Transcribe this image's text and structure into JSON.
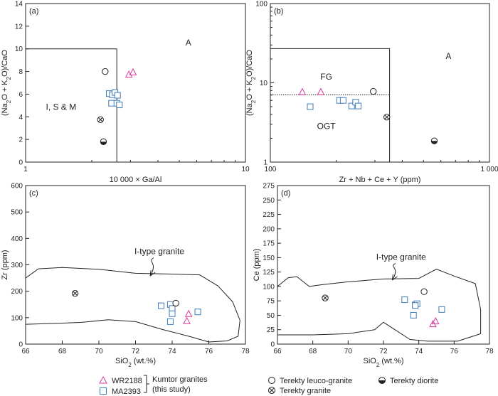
{
  "chart_data": [
    {
      "type": "scatter",
      "panel_label": "(a)",
      "xlabel": "10 000 × Ga/Al",
      "ylabel": "(Na₂O + K₂O)/CaO",
      "x_scale": "log",
      "xlim": [
        1,
        10
      ],
      "ylim": [
        0,
        14
      ],
      "x_ticks": [
        {
          "v": 1,
          "t": "1"
        },
        {
          "v": 10,
          "t": "10"
        }
      ],
      "y_ticks": [
        0,
        2,
        4,
        6,
        8,
        10,
        12,
        14
      ],
      "regions": [
        {
          "label": "A",
          "x": 5.5,
          "y": 10.3
        },
        {
          "label": "I, S & M",
          "x": 1.45,
          "y": 4.6
        }
      ],
      "boundaries": [
        [
          [
            1,
            10
          ],
          [
            2.6,
            10
          ],
          [
            2.6,
            0
          ]
        ]
      ],
      "series": [
        {
          "name": "WR2188",
          "marker": "triangle",
          "points": [
            [
              2.95,
              7.75
            ],
            [
              3.08,
              7.95
            ]
          ]
        },
        {
          "name": "MA2393",
          "marker": "square",
          "points": [
            [
              2.4,
              6.05
            ],
            [
              2.48,
              5.95
            ],
            [
              2.55,
              6.15
            ],
            [
              2.62,
              5.9
            ],
            [
              2.46,
              5.2
            ],
            [
              2.6,
              5.2
            ],
            [
              2.67,
              5.05
            ]
          ]
        },
        {
          "name": "Terekty leuco-granite",
          "marker": "circle",
          "points": [
            [
              2.3,
              8.0
            ]
          ]
        },
        {
          "name": "Terekty granite",
          "marker": "circle-x",
          "points": [
            [
              2.19,
              3.75
            ]
          ]
        },
        {
          "name": "Terekty diorite",
          "marker": "half-circle",
          "points": [
            [
              2.26,
              1.8
            ]
          ]
        }
      ]
    },
    {
      "type": "scatter",
      "panel_label": "(b)",
      "xlabel": "Zr + Nb + Ce + Y (ppm)",
      "ylabel": "(Na₂O + K₂O)/CaO",
      "x_scale": "log",
      "y_scale": "log",
      "xlim": [
        100,
        1000
      ],
      "ylim": [
        1,
        100
      ],
      "x_ticks": [
        {
          "v": 100,
          "t": "100"
        },
        {
          "v": 1000,
          "t": "1 000"
        }
      ],
      "y_ticks": [
        {
          "v": 1,
          "t": "1"
        },
        {
          "v": 10,
          "t": "10"
        },
        {
          "v": 100,
          "t": "100"
        }
      ],
      "regions": [
        {
          "label": "A",
          "x": 650,
          "y": 20
        },
        {
          "label": "FG",
          "x": 180,
          "y": 11
        },
        {
          "label": "OGT",
          "x": 180,
          "y": 2.6
        }
      ],
      "boundaries": [
        [
          [
            100,
            27
          ],
          [
            350,
            27
          ],
          [
            350,
            1
          ]
        ]
      ],
      "dotted_line": {
        "y": 7.1,
        "x_range": [
          100,
          350
        ]
      },
      "series": [
        {
          "name": "WR2188",
          "marker": "triangle",
          "points": [
            [
              140,
              7.7
            ],
            [
              170,
              7.7
            ]
          ]
        },
        {
          "name": "MA2393",
          "marker": "square",
          "points": [
            [
              152,
              5.0
            ],
            [
              207,
              6.0
            ],
            [
              215,
              6.0
            ],
            [
              235,
              5.1
            ],
            [
              245,
              5.7
            ],
            [
              252,
              5.1
            ]
          ]
        },
        {
          "name": "Terekty leuco-granite",
          "marker": "circle",
          "points": [
            [
              295,
              7.8
            ]
          ]
        },
        {
          "name": "Terekty granite",
          "marker": "circle-x",
          "points": [
            [
              340,
              3.7
            ]
          ]
        },
        {
          "name": "Terekty diorite",
          "marker": "half-circle",
          "points": [
            [
              560,
              1.85
            ]
          ]
        }
      ]
    },
    {
      "type": "scatter",
      "panel_label": "(c)",
      "xlabel": "SiO₂ (wt.%)",
      "ylabel": "Zr (ppm)",
      "xlim": [
        66,
        78
      ],
      "ylim": [
        0,
        600
      ],
      "x_ticks": [
        66,
        68,
        70,
        72,
        74,
        76,
        78
      ],
      "y_ticks": [
        0,
        100,
        200,
        300,
        400,
        500,
        600
      ],
      "annotation": {
        "text": "I-type granite",
        "text_at": [
          73.3,
          340
        ],
        "arrow_to": [
          72.8,
          258
        ]
      },
      "field_outline": [
        [
          66,
          250
        ],
        [
          66.7,
          285
        ],
        [
          68,
          290
        ],
        [
          70,
          283
        ],
        [
          72,
          268
        ],
        [
          74,
          265
        ],
        [
          75.5,
          262
        ],
        [
          76.5,
          220
        ],
        [
          77.3,
          160
        ],
        [
          77.7,
          90
        ],
        [
          77.6,
          30
        ],
        [
          77,
          12
        ],
        [
          76,
          8
        ],
        [
          75,
          28
        ],
        [
          73.5,
          55
        ],
        [
          72,
          85
        ],
        [
          70.5,
          92
        ],
        [
          69,
          82
        ],
        [
          67.5,
          78
        ],
        [
          66,
          75
        ]
      ],
      "series": [
        {
          "name": "WR2188",
          "marker": "triangle",
          "points": [
            [
              74.8,
              88
            ],
            [
              74.9,
              115
            ]
          ]
        },
        {
          "name": "MA2393",
          "marker": "square",
          "points": [
            [
              73.4,
              145
            ],
            [
              73.9,
              150
            ],
            [
              74.0,
              135
            ],
            [
              74.0,
              115
            ],
            [
              73.9,
              85
            ],
            [
              75.4,
              122
            ]
          ]
        },
        {
          "name": "Terekty leuco-granite",
          "marker": "circle",
          "points": [
            [
              74.2,
              155
            ]
          ]
        },
        {
          "name": "Terekty granite",
          "marker": "circle-x",
          "points": [
            [
              68.7,
              192
            ]
          ]
        },
        {
          "name": "Terekty diorite",
          "marker": "half-circle",
          "points": []
        }
      ]
    },
    {
      "type": "scatter",
      "panel_label": "(d)",
      "xlabel": "SiO₂ (wt.%)",
      "ylabel": "Ce (ppm)",
      "xlim": [
        66,
        78
      ],
      "ylim": [
        0,
        275
      ],
      "x_ticks": [
        66,
        68,
        70,
        72,
        74,
        76,
        78
      ],
      "y_ticks": [
        0,
        25,
        50,
        75,
        100,
        125,
        150,
        175,
        200,
        225,
        250,
        275
      ],
      "annotation": {
        "text": "I-type granite",
        "text_at": [
          73.0,
          146
        ],
        "arrow_to": [
          72.5,
          111
        ]
      },
      "field_outline": [
        [
          66,
          100
        ],
        [
          66.6,
          115
        ],
        [
          67.1,
          117
        ],
        [
          67.8,
          100
        ],
        [
          68.5,
          103
        ],
        [
          70,
          108
        ],
        [
          72,
          113
        ],
        [
          74,
          114
        ],
        [
          75,
          130
        ],
        [
          76,
          118
        ],
        [
          77.2,
          105
        ],
        [
          77.5,
          60
        ],
        [
          77.5,
          18
        ],
        [
          76.2,
          5
        ],
        [
          74.5,
          5
        ],
        [
          73.5,
          8
        ],
        [
          72.5,
          28
        ],
        [
          72,
          38
        ],
        [
          71.5,
          25
        ],
        [
          70,
          18
        ],
        [
          68,
          16
        ],
        [
          66,
          16
        ]
      ],
      "series": [
        {
          "name": "WR2188",
          "marker": "triangle",
          "points": [
            [
              74.8,
              35
            ],
            [
              74.95,
              40
            ]
          ]
        },
        {
          "name": "MA2393",
          "marker": "square",
          "points": [
            [
              73.2,
              77
            ],
            [
              73.8,
              68
            ],
            [
              73.9,
              70
            ],
            [
              73.8,
              67
            ],
            [
              73.7,
              50
            ],
            [
              75.3,
              60
            ]
          ]
        },
        {
          "name": "Terekty leuco-granite",
          "marker": "circle",
          "points": [
            [
              74.3,
              91
            ]
          ]
        },
        {
          "name": "Terekty granite",
          "marker": "circle-x",
          "points": [
            [
              68.7,
              80
            ]
          ]
        },
        {
          "name": "Terekty diorite",
          "marker": "half-circle",
          "points": []
        }
      ]
    }
  ],
  "legend": {
    "wr2188": "WR2188",
    "ma2393": "MA2393",
    "kumtor_line1": "Kumtor granites",
    "kumtor_line2": "(this study)",
    "leuco": "Terekty leuco-granite",
    "granite": "Terekty granite",
    "diorite": "Terekty diorite"
  },
  "colors": {
    "triangle": "#d63a9a",
    "square": "#3e7cb8",
    "axis": "#222222"
  }
}
